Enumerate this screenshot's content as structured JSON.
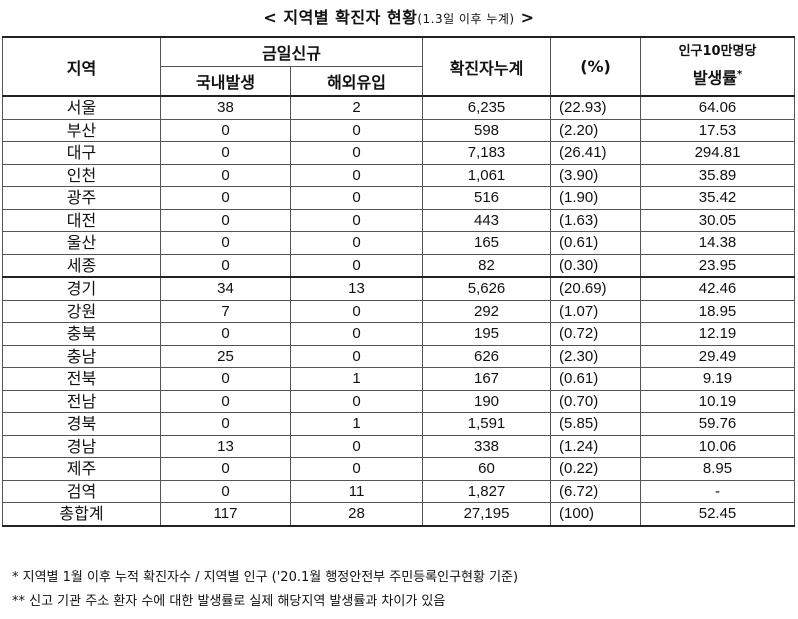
{
  "title": {
    "main": "< 지역별 확진자 현황",
    "sub": "(1.3일 이후 누계)",
    "end": " >"
  },
  "headers": {
    "region": "지역",
    "new_today": "금일신규",
    "domestic": "국내발생",
    "overseas": "해외유입",
    "cumulative": "확진자누계",
    "percent": "(%)",
    "rate_top": "인구10만명당",
    "rate_bottom": "발생률",
    "rate_mark": "*"
  },
  "rows": [
    {
      "region": "서울",
      "domestic": "38",
      "overseas": "2",
      "cumulative": "6,235",
      "percent": "(22.93)",
      "rate": "64.06"
    },
    {
      "region": "부산",
      "domestic": "0",
      "overseas": "0",
      "cumulative": "598",
      "percent": "(2.20)",
      "rate": "17.53"
    },
    {
      "region": "대구",
      "domestic": "0",
      "overseas": "0",
      "cumulative": "7,183",
      "percent": "(26.41)",
      "rate": "294.81"
    },
    {
      "region": "인천",
      "domestic": "0",
      "overseas": "0",
      "cumulative": "1,061",
      "percent": "(3.90)",
      "rate": "35.89"
    },
    {
      "region": "광주",
      "domestic": "0",
      "overseas": "0",
      "cumulative": "516",
      "percent": "(1.90)",
      "rate": "35.42"
    },
    {
      "region": "대전",
      "domestic": "0",
      "overseas": "0",
      "cumulative": "443",
      "percent": "(1.63)",
      "rate": "30.05"
    },
    {
      "region": "울산",
      "domestic": "0",
      "overseas": "0",
      "cumulative": "165",
      "percent": "(0.61)",
      "rate": "14.38"
    },
    {
      "region": "세종",
      "domestic": "0",
      "overseas": "0",
      "cumulative": "82",
      "percent": "(0.30)",
      "rate": "23.95"
    },
    {
      "region": "경기",
      "domestic": "34",
      "overseas": "13",
      "cumulative": "5,626",
      "percent": "(20.69)",
      "rate": "42.46"
    },
    {
      "region": "강원",
      "domestic": "7",
      "overseas": "0",
      "cumulative": "292",
      "percent": "(1.07)",
      "rate": "18.95"
    },
    {
      "region": "충북",
      "domestic": "0",
      "overseas": "0",
      "cumulative": "195",
      "percent": "(0.72)",
      "rate": "12.19"
    },
    {
      "region": "충남",
      "domestic": "25",
      "overseas": "0",
      "cumulative": "626",
      "percent": "(2.30)",
      "rate": "29.49"
    },
    {
      "region": "전북",
      "domestic": "0",
      "overseas": "1",
      "cumulative": "167",
      "percent": "(0.61)",
      "rate": "9.19"
    },
    {
      "region": "전남",
      "domestic": "0",
      "overseas": "0",
      "cumulative": "190",
      "percent": "(0.70)",
      "rate": "10.19"
    },
    {
      "region": "경북",
      "domestic": "0",
      "overseas": "1",
      "cumulative": "1,591",
      "percent": "(5.85)",
      "rate": "59.76"
    },
    {
      "region": "경남",
      "domestic": "13",
      "overseas": "0",
      "cumulative": "338",
      "percent": "(1.24)",
      "rate": "10.06"
    },
    {
      "region": "제주",
      "domestic": "0",
      "overseas": "0",
      "cumulative": "60",
      "percent": "(0.22)",
      "rate": "8.95"
    },
    {
      "region": "검역",
      "domestic": "0",
      "overseas": "11",
      "cumulative": "1,827",
      "percent": "(6.72)",
      "rate": "-"
    },
    {
      "region": "총합계",
      "domestic": "117",
      "overseas": "28",
      "cumulative": "27,195",
      "percent": "(100)",
      "rate": "52.45"
    }
  ],
  "notes": [
    " * 지역별 1월 이후 누적 확진자수 / 지역별 인구 ('20.1월 행정안전부 주민등록인구현황 기준)",
    "** 신고 기관 주소 환자 수에 대한 발생률로 실제 해당지역 발생률과 차이가 있음"
  ]
}
